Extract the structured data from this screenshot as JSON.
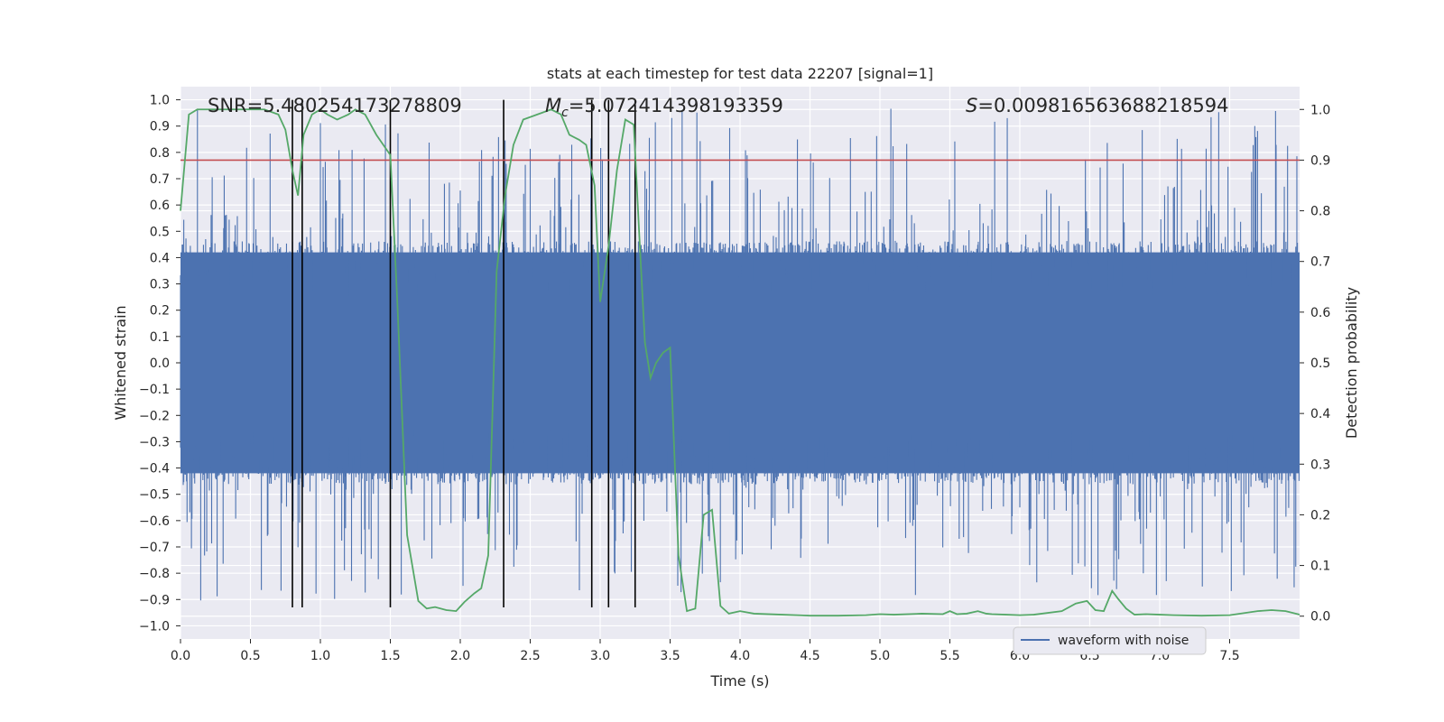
{
  "chart_data": {
    "type": "line",
    "title": "stats at each timestep for test data 22207 [signal=1]",
    "xlabel": "Time (s)",
    "ylabel": "Whitened strain",
    "y2label": "Detection probability",
    "xlim": [
      0.0,
      8.0
    ],
    "ylim": [
      -1.05,
      1.05
    ],
    "y2lim": [
      -0.045,
      1.045
    ],
    "xticks": [
      "0.0",
      "0.5",
      "1.0",
      "1.5",
      "2.0",
      "2.5",
      "3.0",
      "3.5",
      "4.0",
      "4.5",
      "5.0",
      "5.5",
      "6.0",
      "6.5",
      "7.0",
      "7.5"
    ],
    "xtick_values": [
      0.0,
      0.5,
      1.0,
      1.5,
      2.0,
      2.5,
      3.0,
      3.5,
      4.0,
      4.5,
      5.0,
      5.5,
      6.0,
      6.5,
      7.0,
      7.5
    ],
    "yticks": [
      "1.0",
      "0.9",
      "0.8",
      "0.7",
      "0.6",
      "0.5",
      "0.4",
      "0.3",
      "0.2",
      "0.1",
      "0.0",
      "−0.1",
      "−0.2",
      "−0.3",
      "−0.4",
      "−0.5",
      "−0.6",
      "−0.7",
      "−0.8",
      "−0.9",
      "−1.0"
    ],
    "ytick_values": [
      1.0,
      0.9,
      0.8,
      0.7,
      0.6,
      0.5,
      0.4,
      0.3,
      0.2,
      0.1,
      0.0,
      -0.1,
      -0.2,
      -0.3,
      -0.4,
      -0.5,
      -0.6,
      -0.7,
      -0.8,
      -0.9,
      -1.0
    ],
    "y2ticks": [
      "1.0",
      "0.9",
      "0.8",
      "0.7",
      "0.6",
      "0.5",
      "0.4",
      "0.3",
      "0.2",
      "0.1",
      "0.0"
    ],
    "y2tick_values": [
      1.0,
      0.9,
      0.8,
      0.7,
      0.6,
      0.5,
      0.4,
      0.3,
      0.2,
      0.1,
      0.0
    ],
    "annotations": {
      "snr": "SNR=5.480254173278809",
      "mc_symbol": "M",
      "mc_sub": "c",
      "mc_value": "=5.072414398193359",
      "s_symbol": "S",
      "s_value": "=0.009816563688218594"
    },
    "legend": {
      "label": "waveform with noise",
      "location": "lower-right"
    },
    "threshold": {
      "value": 0.9,
      "axis": "right",
      "color": "#c44e52"
    },
    "event_lines": [
      0.8,
      0.87,
      1.5,
      2.31,
      2.94,
      3.06,
      3.25
    ],
    "event_line_range": [
      -0.93,
      1.0
    ],
    "waveform": {
      "name": "waveform with noise",
      "color": "#4c72b0",
      "samples": 2048,
      "envelope_core": 0.42,
      "peak_max": 1.0,
      "peak_min": -0.93
    },
    "probability_series": {
      "name": "Detection probability",
      "color": "#55a868",
      "x": [
        0.0,
        0.06,
        0.12,
        0.2,
        0.4,
        0.6,
        0.7,
        0.75,
        0.8,
        0.84,
        0.88,
        0.94,
        1.0,
        1.05,
        1.12,
        1.2,
        1.25,
        1.32,
        1.4,
        1.5,
        1.55,
        1.62,
        1.7,
        1.76,
        1.82,
        1.9,
        1.97,
        2.03,
        2.1,
        2.15,
        2.2,
        2.26,
        2.32,
        2.38,
        2.45,
        2.55,
        2.65,
        2.72,
        2.78,
        2.85,
        2.9,
        2.96,
        3.0,
        3.06,
        3.12,
        3.18,
        3.24,
        3.28,
        3.32,
        3.36,
        3.4,
        3.45,
        3.5,
        3.56,
        3.62,
        3.68,
        3.74,
        3.8,
        3.86,
        3.92,
        4.0,
        4.1,
        4.3,
        4.5,
        4.7,
        4.9,
        5.0,
        5.1,
        5.3,
        5.45,
        5.5,
        5.55,
        5.62,
        5.7,
        5.76,
        5.8,
        5.9,
        6.0,
        6.1,
        6.3,
        6.4,
        6.48,
        6.54,
        6.6,
        6.66,
        6.7,
        6.76,
        6.82,
        6.9,
        7.0,
        7.1,
        7.3,
        7.5,
        7.7,
        7.8,
        7.9,
        8.0
      ],
      "y": [
        0.8,
        0.99,
        1.0,
        1.0,
        1.0,
        1.0,
        0.99,
        0.96,
        0.88,
        0.83,
        0.95,
        0.99,
        1.0,
        0.99,
        0.98,
        0.99,
        1.0,
        0.99,
        0.95,
        0.91,
        0.62,
        0.16,
        0.03,
        0.015,
        0.018,
        0.012,
        0.01,
        0.028,
        0.045,
        0.055,
        0.12,
        0.68,
        0.83,
        0.93,
        0.98,
        0.99,
        1.0,
        0.99,
        0.95,
        0.94,
        0.93,
        0.85,
        0.62,
        0.73,
        0.88,
        0.98,
        0.97,
        0.75,
        0.54,
        0.47,
        0.5,
        0.52,
        0.53,
        0.12,
        0.01,
        0.015,
        0.2,
        0.21,
        0.02,
        0.005,
        0.01,
        0.005,
        0.003,
        0.001,
        0.001,
        0.002,
        0.004,
        0.003,
        0.005,
        0.004,
        0.01,
        0.004,
        0.005,
        0.01,
        0.005,
        0.004,
        0.003,
        0.002,
        0.003,
        0.01,
        0.025,
        0.03,
        0.012,
        0.01,
        0.05,
        0.035,
        0.015,
        0.003,
        0.004,
        0.003,
        0.002,
        0.001,
        0.002,
        0.01,
        0.012,
        0.01,
        0.003
      ]
    }
  }
}
